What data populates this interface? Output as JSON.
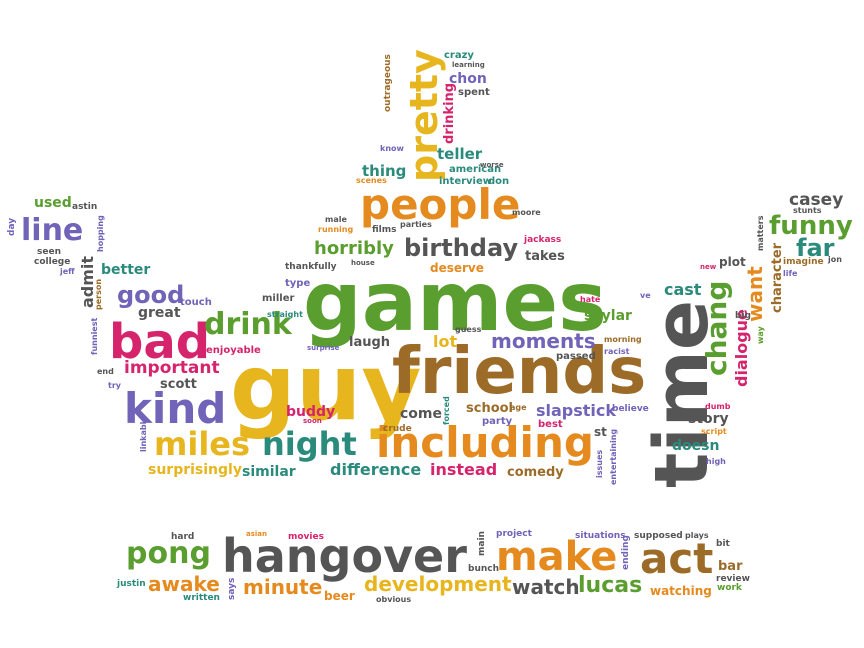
{
  "palette": {
    "green": "#5a9e2f",
    "orange": "#e58a1e",
    "purple": "#7063b8",
    "pink": "#d6246c",
    "gray": "#555555",
    "brown": "#9c6b28",
    "yellow": "#e7b51e",
    "teal": "#2a8a7c"
  },
  "words": [
    {
      "text": "games",
      "color": "green"
    },
    {
      "text": "guy",
      "color": "yellow"
    },
    {
      "text": "friends",
      "color": "brown"
    },
    {
      "text": "time",
      "color": "gray"
    },
    {
      "text": "hangover",
      "color": "gray"
    },
    {
      "text": "including",
      "color": "orange"
    },
    {
      "text": "people",
      "color": "orange"
    },
    {
      "text": "bad",
      "color": "pink"
    },
    {
      "text": "kind",
      "color": "purple"
    },
    {
      "text": "miles",
      "color": "yellow"
    },
    {
      "text": "night",
      "color": "teal"
    },
    {
      "text": "pretty",
      "color": "yellow"
    },
    {
      "text": "make",
      "color": "orange"
    },
    {
      "text": "act",
      "color": "brown"
    },
    {
      "text": "pong",
      "color": "green"
    },
    {
      "text": "drink",
      "color": "green"
    },
    {
      "text": "line",
      "color": "purple"
    },
    {
      "text": "chang",
      "color": "green"
    },
    {
      "text": "funny",
      "color": "green"
    },
    {
      "text": "birthday",
      "color": "gray"
    },
    {
      "text": "good",
      "color": "purple"
    },
    {
      "text": "moments",
      "color": "purple"
    },
    {
      "text": "want",
      "color": "orange"
    },
    {
      "text": "horribly",
      "color": "green"
    },
    {
      "text": "lucas",
      "color": "green"
    },
    {
      "text": "watch",
      "color": "gray"
    },
    {
      "text": "awake",
      "color": "orange"
    },
    {
      "text": "minute",
      "color": "orange"
    },
    {
      "text": "development",
      "color": "yellow"
    },
    {
      "text": "far",
      "color": "teal"
    },
    {
      "text": "casey",
      "color": "gray"
    },
    {
      "text": "difference",
      "color": "teal"
    },
    {
      "text": "instead",
      "color": "pink"
    },
    {
      "text": "comedy",
      "color": "brown"
    },
    {
      "text": "slapstick",
      "color": "purple"
    },
    {
      "text": "important",
      "color": "pink"
    },
    {
      "text": "surprisingly",
      "color": "yellow"
    },
    {
      "text": "similar",
      "color": "teal"
    },
    {
      "text": "story",
      "color": "gray"
    },
    {
      "text": "dialogue",
      "color": "pink"
    },
    {
      "text": "character",
      "color": "brown"
    },
    {
      "text": "doesn",
      "color": "teal"
    },
    {
      "text": "teller",
      "color": "teal"
    },
    {
      "text": "thing",
      "color": "teal"
    },
    {
      "text": "drinking",
      "color": "pink"
    },
    {
      "text": "chon",
      "color": "purple"
    },
    {
      "text": "lot",
      "color": "yellow"
    },
    {
      "text": "laugh",
      "color": "gray"
    },
    {
      "text": "great",
      "color": "gray"
    },
    {
      "text": "better",
      "color": "teal"
    },
    {
      "text": "admit",
      "color": "gray"
    },
    {
      "text": "used",
      "color": "green"
    },
    {
      "text": "deserve",
      "color": "orange"
    },
    {
      "text": "takes",
      "color": "gray"
    },
    {
      "text": "skylar",
      "color": "green"
    },
    {
      "text": "cast",
      "color": "teal"
    },
    {
      "text": "scott",
      "color": "gray"
    },
    {
      "text": "buddy",
      "color": "pink"
    },
    {
      "text": "come",
      "color": "gray"
    },
    {
      "text": "school",
      "color": "brown"
    },
    {
      "text": "party",
      "color": "purple"
    },
    {
      "text": "best",
      "color": "pink"
    },
    {
      "text": "beer",
      "color": "orange"
    },
    {
      "text": "watching",
      "color": "orange"
    },
    {
      "text": "plot",
      "color": "gray"
    },
    {
      "text": "enjoyable",
      "color": "pink"
    },
    {
      "text": "touch",
      "color": "purple"
    },
    {
      "text": "miller",
      "color": "gray"
    },
    {
      "text": "type",
      "color": "purple"
    },
    {
      "text": "american",
      "color": "teal"
    },
    {
      "text": "interview",
      "color": "teal"
    },
    {
      "text": "don",
      "color": "teal"
    },
    {
      "text": "crazy",
      "color": "teal"
    },
    {
      "text": "spent",
      "color": "gray"
    },
    {
      "text": "outrageous",
      "color": "brown"
    },
    {
      "text": "thankfully",
      "color": "gray"
    },
    {
      "text": "passed",
      "color": "gray"
    },
    {
      "text": "believe",
      "color": "purple"
    },
    {
      "text": "crude",
      "color": "brown"
    },
    {
      "text": "hard",
      "color": "gray"
    },
    {
      "text": "bit",
      "color": "gray"
    },
    {
      "text": "review",
      "color": "gray"
    },
    {
      "text": "bar",
      "color": "brown"
    },
    {
      "text": "work",
      "color": "green"
    },
    {
      "text": "justin",
      "color": "teal"
    },
    {
      "text": "says",
      "color": "purple"
    },
    {
      "text": "written",
      "color": "teal"
    },
    {
      "text": "obvious",
      "color": "gray"
    },
    {
      "text": "bunch",
      "color": "gray"
    },
    {
      "text": "main",
      "color": "gray"
    },
    {
      "text": "project",
      "color": "purple"
    },
    {
      "text": "situations",
      "color": "purple"
    },
    {
      "text": "supposed",
      "color": "gray"
    },
    {
      "text": "plays",
      "color": "gray"
    },
    {
      "text": "ending",
      "color": "purple"
    },
    {
      "text": "movies",
      "color": "pink"
    },
    {
      "text": "asian",
      "color": "orange"
    },
    {
      "text": "day",
      "color": "purple"
    },
    {
      "text": "astin",
      "color": "gray"
    },
    {
      "text": "hopping",
      "color": "purple"
    },
    {
      "text": "seen",
      "color": "gray"
    },
    {
      "text": "college",
      "color": "gray"
    },
    {
      "text": "jeff",
      "color": "purple"
    },
    {
      "text": "person",
      "color": "brown"
    },
    {
      "text": "funniest",
      "color": "purple"
    },
    {
      "text": "end",
      "color": "gray"
    },
    {
      "text": "try",
      "color": "purple"
    },
    {
      "text": "linkable",
      "color": "purple"
    },
    {
      "text": "male",
      "color": "gray"
    },
    {
      "text": "running",
      "color": "orange"
    },
    {
      "text": "films",
      "color": "gray"
    },
    {
      "text": "parties",
      "color": "gray"
    },
    {
      "text": "house",
      "color": "gray"
    },
    {
      "text": "scenes",
      "color": "orange"
    },
    {
      "text": "know",
      "color": "purple"
    },
    {
      "text": "worse",
      "color": "gray"
    },
    {
      "text": "moore",
      "color": "gray"
    },
    {
      "text": "jackass",
      "color": "pink"
    },
    {
      "text": "learning",
      "color": "gray"
    },
    {
      "text": "stunts",
      "color": "gray"
    },
    {
      "text": "matters",
      "color": "gray"
    },
    {
      "text": "imagine",
      "color": "brown"
    },
    {
      "text": "life",
      "color": "purple"
    },
    {
      "text": "jon",
      "color": "gray"
    },
    {
      "text": "new",
      "color": "pink"
    },
    {
      "text": "big",
      "color": "gray"
    },
    {
      "text": "way",
      "color": "green"
    },
    {
      "text": "hate",
      "color": "pink"
    },
    {
      "text": "ve",
      "color": "purple"
    },
    {
      "text": "guess",
      "color": "gray"
    },
    {
      "text": "morning",
      "color": "brown"
    },
    {
      "text": "racist",
      "color": "purple"
    },
    {
      "text": "dumb",
      "color": "pink"
    },
    {
      "text": "script",
      "color": "orange"
    },
    {
      "text": "high",
      "color": "purple"
    },
    {
      "text": "st",
      "color": "gray"
    },
    {
      "text": "issues",
      "color": "purple"
    },
    {
      "text": "entertaining",
      "color": "purple"
    },
    {
      "text": "forced",
      "color": "teal"
    },
    {
      "text": "age",
      "color": "brown"
    },
    {
      "text": "straight",
      "color": "teal"
    },
    {
      "text": "surprise",
      "color": "purple"
    },
    {
      "text": "soon",
      "color": "pink"
    }
  ]
}
